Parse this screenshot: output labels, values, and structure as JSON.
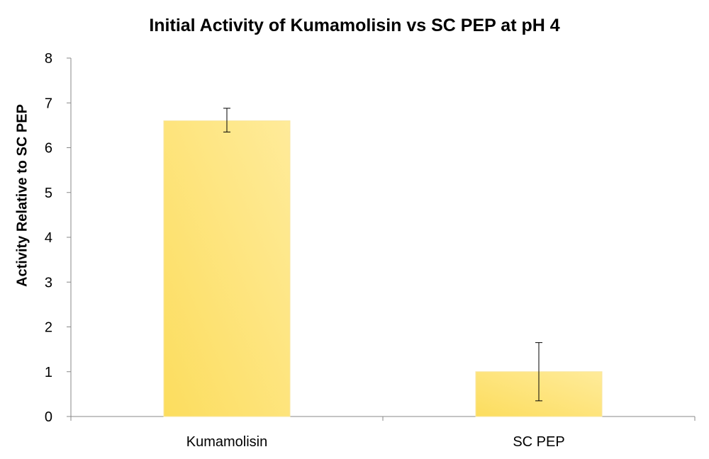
{
  "chart_data": {
    "type": "bar",
    "title": "Initial Activity of Kumamolisin vs SC PEP at pH 4",
    "xlabel": "",
    "ylabel": "Activity Relative to SC PEP",
    "categories": [
      "Kumamolisin",
      "SC PEP"
    ],
    "values": [
      6.6,
      1.0
    ],
    "error_bars": [
      {
        "low": 6.35,
        "high": 6.88
      },
      {
        "low": 0.35,
        "high": 1.65
      }
    ],
    "ylim": [
      0,
      8
    ],
    "yticks": [
      "0",
      "1",
      "2",
      "3",
      "4",
      "5",
      "6",
      "7",
      "8"
    ],
    "grid": false,
    "legend": "none",
    "bar_color": "#FFE680",
    "bar_color_dark": "#FCDD5E"
  }
}
